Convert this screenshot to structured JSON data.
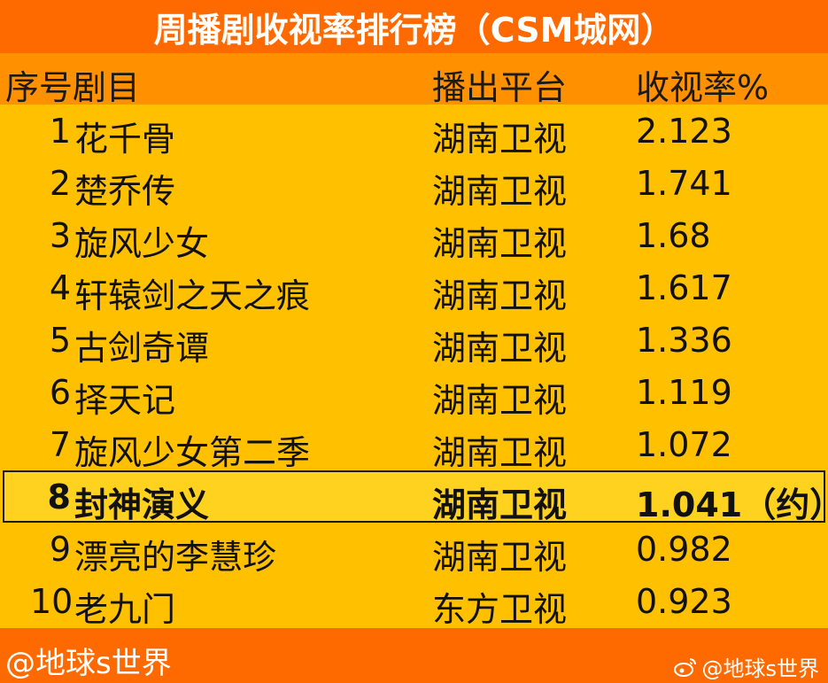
{
  "title": "周播剧收视率排行榜（CSM城网）",
  "header": {
    "col_rank_name": "序号剧目",
    "col_platform": "播出平台",
    "col_rating": "收视率%"
  },
  "rows": [
    {
      "rank": "1",
      "name": "花千骨",
      "platform": "湖南卫视",
      "rating": "2.123"
    },
    {
      "rank": "2",
      "name": "楚乔传",
      "platform": "湖南卫视",
      "rating": "1.741"
    },
    {
      "rank": "3",
      "name": "旋风少女",
      "platform": "湖南卫视",
      "rating": "1.68"
    },
    {
      "rank": "4",
      "name": "轩辕剑之天之痕",
      "platform": "湖南卫视",
      "rating": "1.617"
    },
    {
      "rank": "5",
      "name": "古剑奇谭",
      "platform": "湖南卫视",
      "rating": "1.336"
    },
    {
      "rank": "6",
      "name": "择天记",
      "platform": "湖南卫视",
      "rating": "1.119"
    },
    {
      "rank": "7",
      "name": "旋风少女第二季",
      "platform": "湖南卫视",
      "rating": "1.072"
    },
    {
      "rank": "8",
      "name": "封神演义",
      "platform": "湖南卫视",
      "rating": "1.041（约）"
    },
    {
      "rank": "9",
      "name": "漂亮的李慧珍",
      "platform": "湖南卫视",
      "rating": "0.982"
    },
    {
      "rank": "10",
      "name": "老九门",
      "platform": "东方卫视",
      "rating": "0.923"
    }
  ],
  "footer": {
    "left_text": "@地球s世界",
    "watermark_text": "@地球s世界",
    "watermark_icon": "weibo-icon"
  },
  "colors": {
    "title_bg": "#ff6a00",
    "header_bg": "#ff9100",
    "body_bg": "#ffc000",
    "highlight_bg": "#ffd21f"
  }
}
